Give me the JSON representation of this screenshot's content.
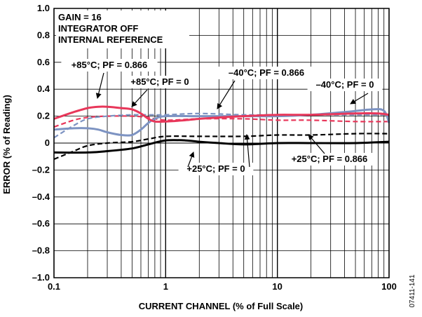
{
  "chart_data": {
    "type": "line",
    "xlabel": "CURRENT CHANNEL (% of Full Scale)",
    "ylabel": "ERROR (% of Reading)",
    "figure_id": "07411-141",
    "x_scale": "log",
    "xlim": [
      0.1,
      100
    ],
    "ylim": [
      -1.0,
      1.0
    ],
    "grid": true,
    "x_ticks": [
      {
        "value": 0.1,
        "label": "0.1"
      },
      {
        "value": 1,
        "label": "1"
      },
      {
        "value": 10,
        "label": "10"
      },
      {
        "value": 100,
        "label": "100"
      }
    ],
    "y_ticks": [
      {
        "value": 1.0,
        "label": "1.0"
      },
      {
        "value": 0.8,
        "label": "0.8"
      },
      {
        "value": 0.6,
        "label": "0.6"
      },
      {
        "value": 0.4,
        "label": "0.4"
      },
      {
        "value": 0.2,
        "label": "0.2"
      },
      {
        "value": 0,
        "label": "0"
      },
      {
        "value": -0.2,
        "label": "–0.2"
      },
      {
        "value": -0.4,
        "label": "–0.4"
      },
      {
        "value": -0.6,
        "label": "–0.6"
      },
      {
        "value": -0.8,
        "label": "–0.8"
      },
      {
        "value": -1.0,
        "label": "–1.0"
      }
    ],
    "conditions": [
      "GAIN = 16",
      "INTEGRATOR OFF",
      "INTERNAL REFERENCE"
    ],
    "series": [
      {
        "name": "+25°C; PF = 0",
        "color": "#000000",
        "dash": "solid",
        "x": [
          0.1,
          0.2,
          0.3,
          0.5,
          0.7,
          1,
          1.5,
          2,
          3,
          5,
          10,
          20,
          50,
          100
        ],
        "y": [
          -0.07,
          -0.07,
          -0.06,
          -0.04,
          -0.01,
          0.02,
          0.02,
          0.01,
          0.0,
          -0.01,
          0.0,
          0.0,
          0.0,
          0.01
        ]
      },
      {
        "name": "+25°C; PF = 0.866",
        "color": "#000000",
        "dash": "dashed",
        "x": [
          0.1,
          0.15,
          0.2,
          0.3,
          0.5,
          0.7,
          1,
          2,
          5,
          10,
          20,
          50,
          100
        ],
        "y": [
          -0.12,
          -0.06,
          -0.02,
          0.0,
          0.01,
          0.03,
          0.05,
          0.05,
          0.05,
          0.06,
          0.06,
          0.07,
          0.07
        ]
      },
      {
        "name": "+85°C; PF = 0",
        "color": "#e8375a",
        "dash": "solid",
        "x": [
          0.1,
          0.15,
          0.2,
          0.25,
          0.3,
          0.4,
          0.5,
          0.6,
          0.7,
          0.8,
          1,
          1.5,
          2,
          3,
          5,
          10,
          20,
          50,
          80,
          100
        ],
        "y": [
          0.18,
          0.23,
          0.26,
          0.27,
          0.27,
          0.26,
          0.25,
          0.22,
          0.18,
          0.16,
          0.16,
          0.17,
          0.18,
          0.19,
          0.2,
          0.21,
          0.21,
          0.22,
          0.22,
          0.21
        ]
      },
      {
        "name": "+85°C; PF = 0.866",
        "color": "#e8375a",
        "dash": "dashed",
        "x": [
          0.1,
          0.15,
          0.2,
          0.3,
          0.5,
          0.7,
          1,
          2,
          5,
          10,
          20,
          50,
          100
        ],
        "y": [
          0.12,
          0.17,
          0.19,
          0.2,
          0.2,
          0.19,
          0.17,
          0.18,
          0.18,
          0.17,
          0.17,
          0.16,
          0.16
        ]
      },
      {
        "name": "–40°C; PF = 0",
        "color": "#7d93c2",
        "dash": "solid",
        "x": [
          0.1,
          0.15,
          0.2,
          0.25,
          0.3,
          0.4,
          0.5,
          0.6,
          0.7,
          0.8,
          1,
          2,
          5,
          10,
          20,
          40,
          70,
          90,
          100
        ],
        "y": [
          0.1,
          0.11,
          0.11,
          0.1,
          0.08,
          0.06,
          0.06,
          0.1,
          0.15,
          0.18,
          0.2,
          0.2,
          0.2,
          0.2,
          0.21,
          0.23,
          0.25,
          0.24,
          0.15
        ]
      },
      {
        "name": "–40°C; PF = 0.866",
        "color": "#7d93c2",
        "dash": "dashed",
        "x": [
          0.1,
          0.15,
          0.2,
          0.3,
          0.5,
          0.7,
          1,
          2,
          5,
          10,
          20,
          50,
          100
        ],
        "y": [
          0.04,
          0.13,
          0.18,
          0.2,
          0.21,
          0.21,
          0.21,
          0.22,
          0.21,
          0.21,
          0.21,
          0.21,
          0.21
        ]
      }
    ],
    "annotations": [
      {
        "text": "+85°C; PF = 0.866"
      },
      {
        "text": "+85°C; PF = 0"
      },
      {
        "text": "–40°C; PF = 0.866"
      },
      {
        "text": "–40°C; PF = 0"
      },
      {
        "text": "+25°C; PF = 0.866"
      },
      {
        "text": "+25°C; PF = 0"
      }
    ]
  }
}
